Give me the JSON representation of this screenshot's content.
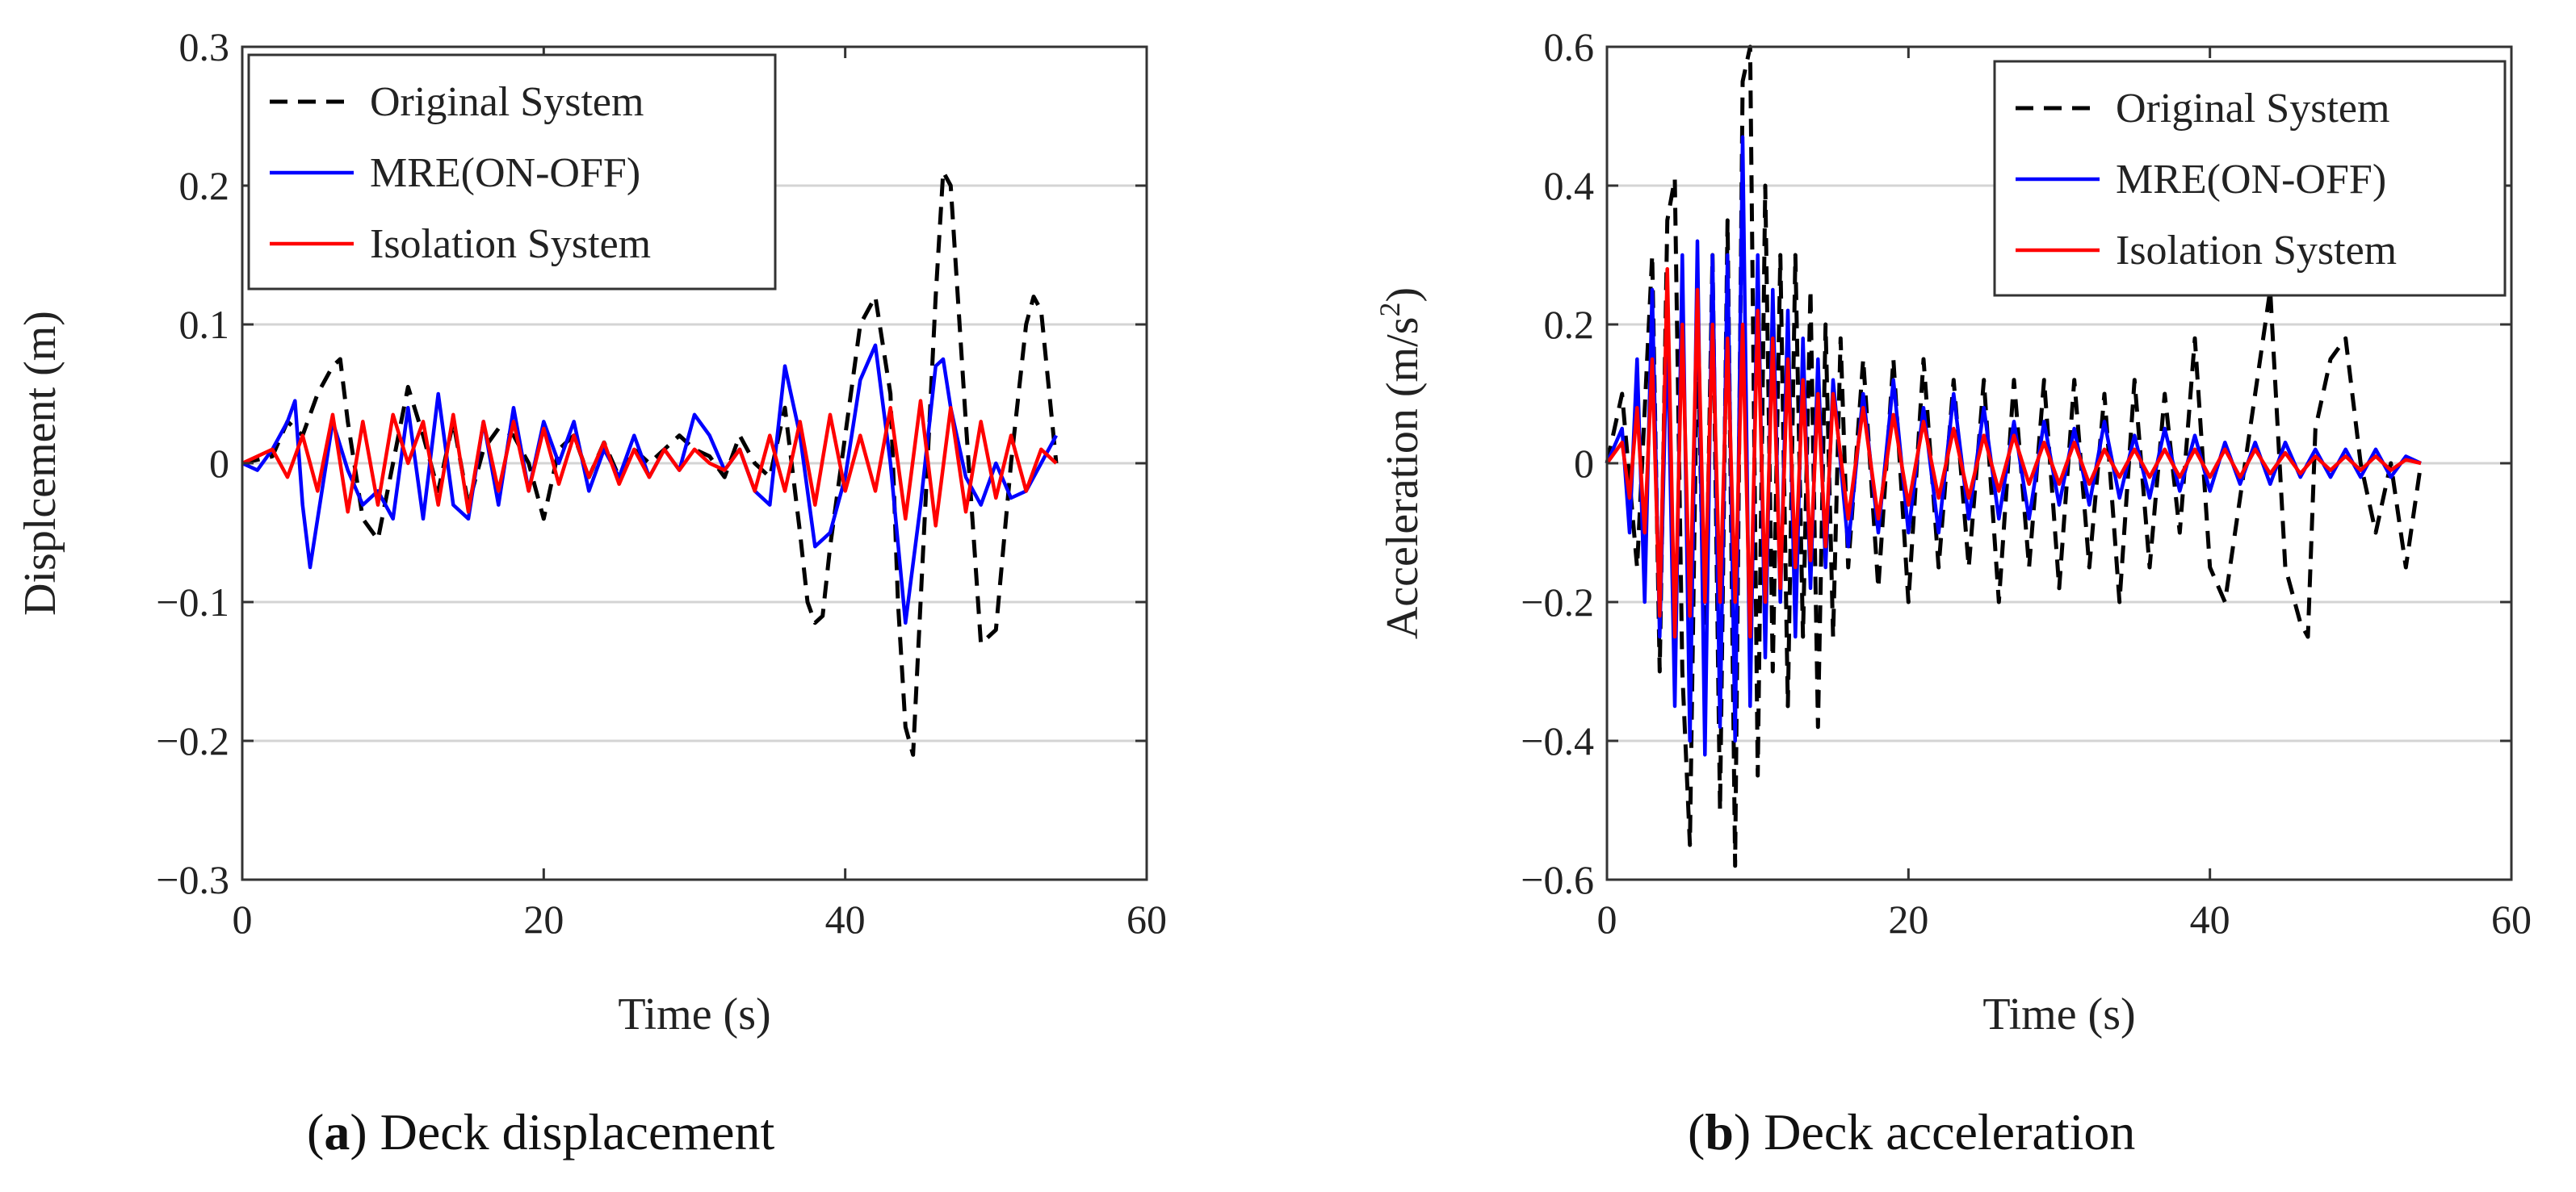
{
  "chart_data": [
    {
      "type": "line",
      "panel": "a",
      "caption_letter": "a",
      "caption_text": ") Deck displacement",
      "caption_open": "(",
      "xlabel": "Time (s)",
      "ylabel": "Displcement (m)",
      "xlim": [
        0,
        60
      ],
      "ylim": [
        -0.3,
        0.3
      ],
      "xticks": [
        "0",
        "20",
        "40",
        "60"
      ],
      "yticks": [
        "0.3",
        "0.2",
        "0.1",
        "0",
        "−0.1",
        "−0.2",
        "−0.3"
      ],
      "ytick_values": [
        0.3,
        0.2,
        0.1,
        0,
        -0.1,
        -0.2,
        -0.3
      ],
      "grid": "horizontal",
      "legend_position": "top-left",
      "series": [
        {
          "name": "Original System",
          "color": "#000000",
          "style": "dashed",
          "x": [
            0,
            2,
            3,
            4,
            5,
            6,
            6.5,
            7,
            8,
            9,
            10,
            11,
            12,
            13,
            14,
            15,
            16,
            17,
            18,
            19,
            20,
            21,
            22,
            23,
            24,
            25,
            26,
            27,
            28,
            29,
            30,
            31,
            32,
            33,
            34,
            35,
            36,
            37,
            37.5,
            38,
            38.5,
            39,
            40,
            41,
            42,
            43,
            43.5,
            44,
            44.5,
            45,
            46,
            46.5,
            47,
            48,
            49,
            50,
            51,
            52,
            52.5,
            53,
            54
          ],
          "y": [
            0,
            0.005,
            0.03,
            0.02,
            0.05,
            0.07,
            0.075,
            0.03,
            -0.04,
            -0.055,
            0,
            0.055,
            0.02,
            -0.02,
            0.03,
            -0.03,
            0.01,
            0.025,
            0.02,
            0,
            -0.04,
            0.01,
            0.02,
            -0.01,
            0.015,
            -0.01,
            0.01,
            0,
            0.01,
            0.02,
            0.01,
            0.005,
            -0.01,
            0.02,
            0,
            -0.01,
            0.04,
            -0.05,
            -0.1,
            -0.115,
            -0.11,
            -0.06,
            0.02,
            0.1,
            0.12,
            0.05,
            -0.1,
            -0.19,
            -0.21,
            -0.1,
            0.12,
            0.21,
            0.2,
            0.03,
            -0.13,
            -0.12,
            0,
            0.1,
            0.12,
            0.11,
            0
          ]
        },
        {
          "name": "MRE(ON-OFF)",
          "color": "#0000ff",
          "style": "solid",
          "x": [
            0,
            1,
            2,
            3,
            3.5,
            4,
            4.5,
            5,
            6,
            7,
            8,
            9,
            10,
            11,
            12,
            13,
            14,
            15,
            16,
            17,
            18,
            19,
            20,
            21,
            22,
            23,
            24,
            25,
            26,
            27,
            28,
            29,
            30,
            31,
            32,
            33,
            34,
            35,
            36,
            37,
            38,
            39,
            40,
            41,
            42,
            43,
            44,
            45,
            46,
            46.5,
            47,
            48,
            49,
            50,
            51,
            52,
            53,
            54
          ],
          "y": [
            0,
            -0.005,
            0.01,
            0.03,
            0.045,
            -0.03,
            -0.075,
            -0.04,
            0.03,
            -0.005,
            -0.03,
            -0.02,
            -0.04,
            0.04,
            -0.04,
            0.05,
            -0.03,
            -0.04,
            0.03,
            -0.03,
            0.04,
            -0.02,
            0.03,
            0,
            0.03,
            -0.02,
            0.01,
            -0.01,
            0.02,
            -0.01,
            0.01,
            -0.005,
            0.035,
            0.02,
            -0.005,
            0.01,
            -0.02,
            -0.03,
            0.07,
            0.02,
            -0.06,
            -0.05,
            -0.01,
            0.06,
            0.085,
            0,
            -0.115,
            -0.03,
            0.07,
            0.075,
            0.04,
            -0.01,
            -0.03,
            0,
            -0.025,
            -0.02,
            0,
            0.02
          ]
        },
        {
          "name": "Isolation System",
          "color": "#ff0000",
          "style": "solid",
          "x": [
            0,
            1,
            2,
            3,
            4,
            5,
            6,
            7,
            8,
            9,
            10,
            11,
            12,
            13,
            14,
            15,
            16,
            17,
            18,
            19,
            20,
            21,
            22,
            23,
            24,
            25,
            26,
            27,
            28,
            29,
            30,
            31,
            32,
            33,
            34,
            35,
            36,
            37,
            38,
            39,
            40,
            41,
            42,
            43,
            44,
            45,
            46,
            47,
            48,
            49,
            50,
            51,
            52,
            53,
            54
          ],
          "y": [
            0,
            0.005,
            0.01,
            -0.01,
            0.02,
            -0.02,
            0.035,
            -0.035,
            0.03,
            -0.03,
            0.035,
            0,
            0.03,
            -0.03,
            0.035,
            -0.035,
            0.03,
            -0.02,
            0.03,
            -0.02,
            0.025,
            -0.015,
            0.02,
            -0.01,
            0.015,
            -0.015,
            0.01,
            -0.01,
            0.01,
            -0.005,
            0.01,
            0,
            -0.005,
            0.01,
            -0.02,
            0.02,
            -0.02,
            0.03,
            -0.03,
            0.035,
            -0.02,
            0.02,
            -0.02,
            0.04,
            -0.04,
            0.045,
            -0.045,
            0.04,
            -0.035,
            0.03,
            -0.025,
            0.02,
            -0.02,
            0.01,
            0
          ]
        }
      ]
    },
    {
      "type": "line",
      "panel": "b",
      "caption_letter": "b",
      "caption_text": ") Deck acceleration",
      "caption_open": "(",
      "xlabel": "Time (s)",
      "ylabel": "Acceleration (m/s",
      "ylabel_sup": "2",
      "ylabel_close": ")",
      "xlim": [
        0,
        60
      ],
      "ylim": [
        -0.6,
        0.6
      ],
      "xticks": [
        "0",
        "20",
        "40",
        "60"
      ],
      "yticks": [
        "0.6",
        "0.4",
        "0.2",
        "0",
        "−0.2",
        "−0.4",
        "−0.6"
      ],
      "ytick_values": [
        0.6,
        0.4,
        0.2,
        0,
        -0.2,
        -0.4,
        -0.6
      ],
      "grid": "horizontal",
      "legend_position": "top-right",
      "series": [
        {
          "name": "Original System",
          "color": "#000000",
          "style": "dashed",
          "x": [
            0,
            1,
            2,
            3,
            3.5,
            4,
            4.5,
            5,
            5.5,
            6,
            6.5,
            7,
            7.5,
            8,
            8.5,
            9,
            9.5,
            10,
            10.5,
            11,
            11.5,
            12,
            12.5,
            13,
            13.5,
            14,
            14.5,
            15,
            15.5,
            16,
            17,
            18,
            19,
            20,
            21,
            22,
            23,
            24,
            25,
            26,
            27,
            28,
            29,
            30,
            31,
            32,
            33,
            34,
            35,
            36,
            37,
            38,
            39,
            40,
            41,
            42,
            43,
            44,
            45,
            46,
            46.5,
            47,
            48,
            49,
            50,
            51,
            52,
            53,
            54
          ],
          "y": [
            0,
            0.1,
            -0.15,
            0.3,
            -0.3,
            0.35,
            0.41,
            -0.3,
            -0.55,
            0.2,
            -0.3,
            0.3,
            -0.5,
            0.35,
            -0.58,
            0.55,
            0.6,
            -0.45,
            0.4,
            -0.3,
            0.3,
            -0.35,
            0.3,
            -0.25,
            0.25,
            -0.38,
            0.2,
            -0.25,
            0.18,
            -0.15,
            0.15,
            -0.18,
            0.15,
            -0.2,
            0.15,
            -0.15,
            0.12,
            -0.15,
            0.12,
            -0.2,
            0.12,
            -0.15,
            0.12,
            -0.18,
            0.12,
            -0.15,
            0.1,
            -0.2,
            0.12,
            -0.15,
            0.1,
            -0.1,
            0.18,
            -0.15,
            -0.2,
            -0.05,
            0.1,
            0.25,
            -0.15,
            -0.23,
            -0.25,
            0.05,
            0.15,
            0.18,
            0,
            -0.1,
            0,
            -0.15,
            0
          ]
        },
        {
          "name": "MRE(ON-OFF)",
          "color": "#0000ff",
          "style": "solid",
          "x": [
            0,
            1,
            1.5,
            2,
            2.5,
            3,
            3.5,
            4,
            4.5,
            5,
            5.5,
            6,
            6.5,
            7,
            7.5,
            8,
            8.5,
            9,
            9.5,
            10,
            10.5,
            11,
            11.5,
            12,
            12.5,
            13,
            13.5,
            14,
            14.5,
            15,
            16,
            17,
            18,
            19,
            20,
            21,
            22,
            23,
            24,
            25,
            26,
            27,
            28,
            29,
            30,
            31,
            32,
            33,
            34,
            35,
            36,
            37,
            38,
            39,
            40,
            41,
            42,
            43,
            44,
            45,
            46,
            47,
            48,
            49,
            50,
            51,
            52,
            53,
            54
          ],
          "y": [
            0,
            0.05,
            -0.1,
            0.15,
            -0.2,
            0.25,
            -0.25,
            0.2,
            -0.35,
            0.3,
            -0.4,
            0.32,
            -0.42,
            0.3,
            -0.38,
            0.3,
            -0.4,
            0.47,
            -0.35,
            0.3,
            -0.28,
            0.25,
            -0.2,
            0.22,
            -0.25,
            0.18,
            -0.18,
            0.15,
            -0.15,
            0.12,
            -0.12,
            0.1,
            -0.1,
            0.12,
            -0.1,
            0.08,
            -0.1,
            0.1,
            -0.08,
            0.08,
            -0.08,
            0.06,
            -0.08,
            0.06,
            -0.06,
            0.05,
            -0.06,
            0.06,
            -0.05,
            0.04,
            -0.05,
            0.05,
            -0.04,
            0.04,
            -0.04,
            0.03,
            -0.03,
            0.03,
            -0.03,
            0.03,
            -0.02,
            0.02,
            -0.02,
            0.02,
            -0.02,
            0.02,
            -0.02,
            0.01,
            0
          ]
        },
        {
          "name": "Isolation System",
          "color": "#ff0000",
          "style": "solid",
          "x": [
            0,
            1,
            1.5,
            2,
            2.5,
            3,
            3.5,
            4,
            4.5,
            5,
            5.5,
            6,
            6.5,
            7,
            7.5,
            8,
            8.5,
            9,
            9.5,
            10,
            10.5,
            11,
            11.5,
            12,
            12.5,
            13,
            13.5,
            14,
            14.5,
            15,
            16,
            17,
            18,
            19,
            20,
            21,
            22,
            23,
            24,
            25,
            26,
            27,
            28,
            29,
            30,
            31,
            32,
            33,
            34,
            35,
            36,
            37,
            38,
            39,
            40,
            41,
            42,
            43,
            44,
            45,
            46,
            47,
            48,
            49,
            50,
            51,
            52,
            53,
            54
          ],
          "y": [
            0,
            0.03,
            -0.05,
            0.08,
            -0.1,
            0.15,
            -0.22,
            0.28,
            -0.25,
            0.2,
            -0.22,
            0.25,
            -0.2,
            0.2,
            -0.2,
            0.18,
            -0.2,
            0.2,
            -0.25,
            0.22,
            -0.2,
            0.18,
            -0.18,
            0.15,
            -0.15,
            0.12,
            -0.14,
            0.1,
            -0.12,
            0.1,
            -0.08,
            0.08,
            -0.08,
            0.07,
            -0.06,
            0.06,
            -0.05,
            0.05,
            -0.05,
            0.04,
            -0.04,
            0.04,
            -0.03,
            0.03,
            -0.03,
            0.03,
            -0.03,
            0.02,
            -0.02,
            0.02,
            -0.02,
            0.02,
            -0.02,
            0.02,
            -0.02,
            0.02,
            -0.02,
            0.02,
            -0.015,
            0.015,
            -0.015,
            0.01,
            -0.01,
            0.01,
            -0.01,
            0.01,
            -0.01,
            0.005,
            0
          ]
        }
      ]
    }
  ]
}
